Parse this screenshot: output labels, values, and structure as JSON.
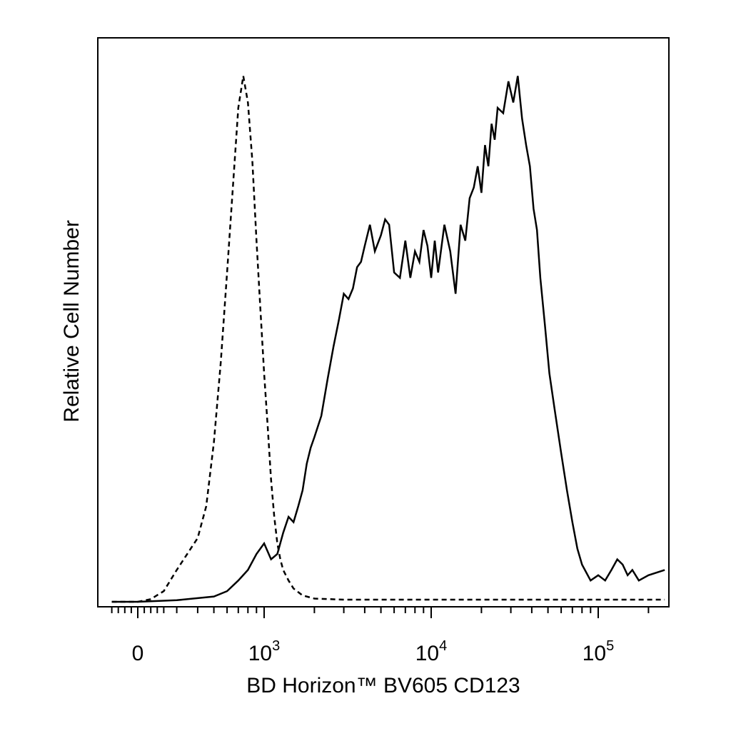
{
  "chart_data": {
    "type": "line",
    "title": "",
    "xlabel": "BD Horizon™ BV605 CD123",
    "ylabel": "Relative Cell Number",
    "x_scale": "biexponential (logicle)",
    "xlim": [
      -250,
      250000
    ],
    "ylim": [
      0,
      100
    ],
    "grid": false,
    "legend": "none",
    "x_ticks": [
      {
        "value": 0,
        "base": "0",
        "exp": ""
      },
      {
        "value": 1000,
        "base": "10",
        "exp": "3"
      },
      {
        "value": 10000,
        "base": "10",
        "exp": "4"
      },
      {
        "value": 100000,
        "base": "10",
        "exp": "5"
      }
    ],
    "series": [
      {
        "style": "dashed",
        "color": "#000000",
        "x": [
          -200,
          0,
          100,
          200,
          300,
          400,
          450,
          500,
          550,
          600,
          650,
          700,
          750,
          800,
          850,
          900,
          950,
          1000,
          1050,
          1100,
          1150,
          1200,
          1250,
          1300,
          1400,
          1500,
          1700,
          2000,
          3000,
          5000,
          10000,
          50000,
          250000
        ],
        "y": [
          0,
          0,
          0.5,
          2,
          6,
          12,
          18,
          30,
          45,
          62,
          78,
          93,
          99,
          94,
          83,
          68,
          55,
          43,
          33,
          23,
          16,
          11,
          8,
          6,
          4,
          2.5,
          1.2,
          0.6,
          0.4,
          0.4,
          0.4,
          0.4,
          0.4
        ]
      },
      {
        "style": "solid",
        "color": "#000000",
        "x": [
          -200,
          0,
          300,
          500,
          600,
          700,
          800,
          900,
          1000,
          1100,
          1200,
          1300,
          1400,
          1500,
          1600,
          1700,
          1800,
          1900,
          2000,
          2200,
          2400,
          2600,
          2800,
          3000,
          3200,
          3400,
          3600,
          3800,
          4000,
          4300,
          4600,
          5000,
          5300,
          5600,
          6000,
          6500,
          7000,
          7500,
          8000,
          8500,
          9000,
          9500,
          10000,
          10500,
          11000,
          12000,
          13000,
          14000,
          15000,
          16000,
          17000,
          18000,
          19000,
          20000,
          21000,
          22000,
          23000,
          24000,
          25000,
          27000,
          29000,
          31000,
          33000,
          35000,
          37000,
          39000,
          41000,
          43000,
          45000,
          48000,
          51000,
          55000,
          60000,
          65000,
          70000,
          75000,
          80000,
          90000,
          100000,
          110000,
          120000,
          130000,
          140000,
          150000,
          160000,
          175000,
          200000,
          250000
        ],
        "y": [
          0,
          0,
          0.3,
          1,
          2,
          4,
          6,
          9,
          11,
          8,
          9,
          13,
          16,
          15,
          18,
          21,
          26,
          29,
          31,
          35,
          42,
          48,
          53,
          58,
          57,
          59,
          63,
          64,
          67,
          71,
          66,
          69,
          72,
          71,
          62,
          61,
          68,
          61,
          66,
          64,
          70,
          67,
          61,
          68,
          62,
          71,
          66,
          58,
          71,
          68,
          76,
          78,
          82,
          77,
          86,
          82,
          90,
          87,
          93,
          92,
          98,
          94,
          99,
          91,
          86,
          82,
          74,
          70,
          61,
          52,
          43,
          36,
          28,
          21,
          15,
          10,
          7,
          4,
          5,
          4,
          6,
          8,
          7,
          5,
          6,
          4,
          5,
          6
        ]
      }
    ]
  }
}
